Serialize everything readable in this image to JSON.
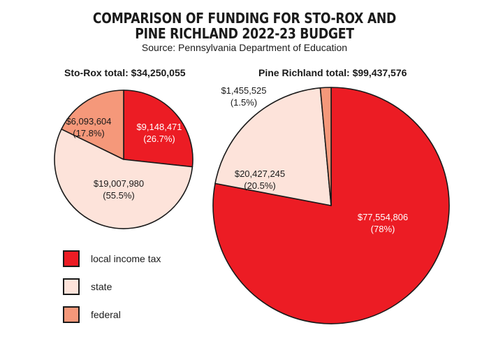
{
  "header": {
    "title_line1": "COMPARISON OF FUNDING FOR STO-ROX AND",
    "title_line2": "PINE RICHLAND 2022-23 BUDGET",
    "subtitle": "Source: Pennsylvania Department of Education"
  },
  "colors": {
    "local income tax": "#ec1c24",
    "state": "#fde3da",
    "federal": "#f5987a",
    "outline": "#1a1a1a"
  },
  "legend": [
    {
      "label": "local income tax",
      "color": "#ec1c24"
    },
    {
      "label": "state",
      "color": "#fde3da"
    },
    {
      "label": "federal",
      "color": "#f5987a"
    }
  ],
  "chart_data": [
    {
      "type": "pie",
      "title": "Sto-Rox total: $34,250,055",
      "total": 34250055,
      "start": "top",
      "direction": "clockwise",
      "slices": [
        {
          "category": "local income tax",
          "value": 9148471,
          "value_label": "$9,148,471",
          "percent_label": "(26.7%)",
          "percent": 26.7
        },
        {
          "category": "state",
          "value": 19007980,
          "value_label": "$19,007,980",
          "percent_label": "(55.5%)",
          "percent": 55.5
        },
        {
          "category": "federal",
          "value": 6093604,
          "value_label": "$6,093,604",
          "percent_label": "(17.8%)",
          "percent": 17.8
        }
      ]
    },
    {
      "type": "pie",
      "title": "Pine Richland total: $99,437,576",
      "total": 99437576,
      "start": "top",
      "direction": "clockwise",
      "slices": [
        {
          "category": "local income tax",
          "value": 77554806,
          "value_label": "$77,554,806",
          "percent_label": "(78%)",
          "percent": 78
        },
        {
          "category": "state",
          "value": 20427245,
          "value_label": "$20,427,245",
          "percent_label": "(20.5%)",
          "percent": 20.5
        },
        {
          "category": "federal",
          "value": 1455525,
          "value_label": "$1,455,525",
          "percent_label": "(1.5%)",
          "percent": 1.5
        }
      ]
    }
  ]
}
